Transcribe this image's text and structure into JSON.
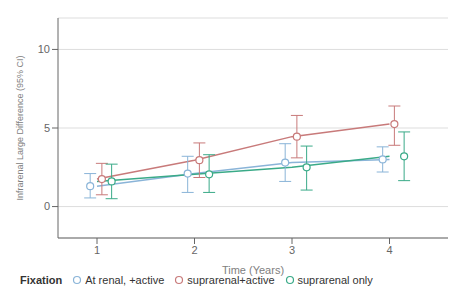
{
  "chart_data": {
    "type": "line",
    "title": "",
    "xlabel": "Time (Years)",
    "ylabel": "Infrarenal Large Difference (95% CI)",
    "x": [
      1,
      2,
      3,
      4
    ],
    "xlim": [
      0.6,
      4.6
    ],
    "xticks": [
      1,
      2,
      3,
      4
    ],
    "ylim": [
      -2.0,
      12.0
    ],
    "yticks": [
      0,
      5,
      10
    ],
    "grid": "y",
    "legend": "bottom",
    "legend_title": "Fixation",
    "series": [
      {
        "name": "At renal, +active",
        "color": "#8ab4d8",
        "line_values": [
          1.3,
          2.1,
          2.8,
          3.0
        ],
        "point_x": [
          0.93,
          1.93,
          2.93,
          3.93
        ],
        "values": [
          1.3,
          2.1,
          2.8,
          3.0
        ],
        "ci_low": [
          0.55,
          0.9,
          1.6,
          2.2
        ],
        "ci_high": [
          2.1,
          3.2,
          4.0,
          3.8
        ]
      },
      {
        "name": "suprarenal+active",
        "color": "#c87a7a",
        "line_values": [
          1.75,
          2.95,
          4.45,
          5.25
        ],
        "point_x": [
          1.05,
          2.05,
          3.05,
          4.05
        ],
        "values": [
          1.75,
          2.95,
          4.45,
          5.25
        ],
        "ci_low": [
          0.75,
          1.85,
          3.1,
          3.9
        ],
        "ci_high": [
          2.75,
          4.05,
          5.8,
          6.4
        ]
      },
      {
        "name": "suprarenal only",
        "color": "#3aaa88",
        "line_values": [
          1.6,
          2.05,
          2.5,
          3.2
        ],
        "point_x": [
          1.15,
          2.15,
          3.15,
          4.15
        ],
        "values": [
          1.6,
          2.05,
          2.5,
          3.2
        ],
        "ci_low": [
          0.5,
          0.9,
          1.05,
          1.65
        ],
        "ci_high": [
          2.7,
          3.3,
          3.85,
          4.75
        ]
      }
    ]
  }
}
